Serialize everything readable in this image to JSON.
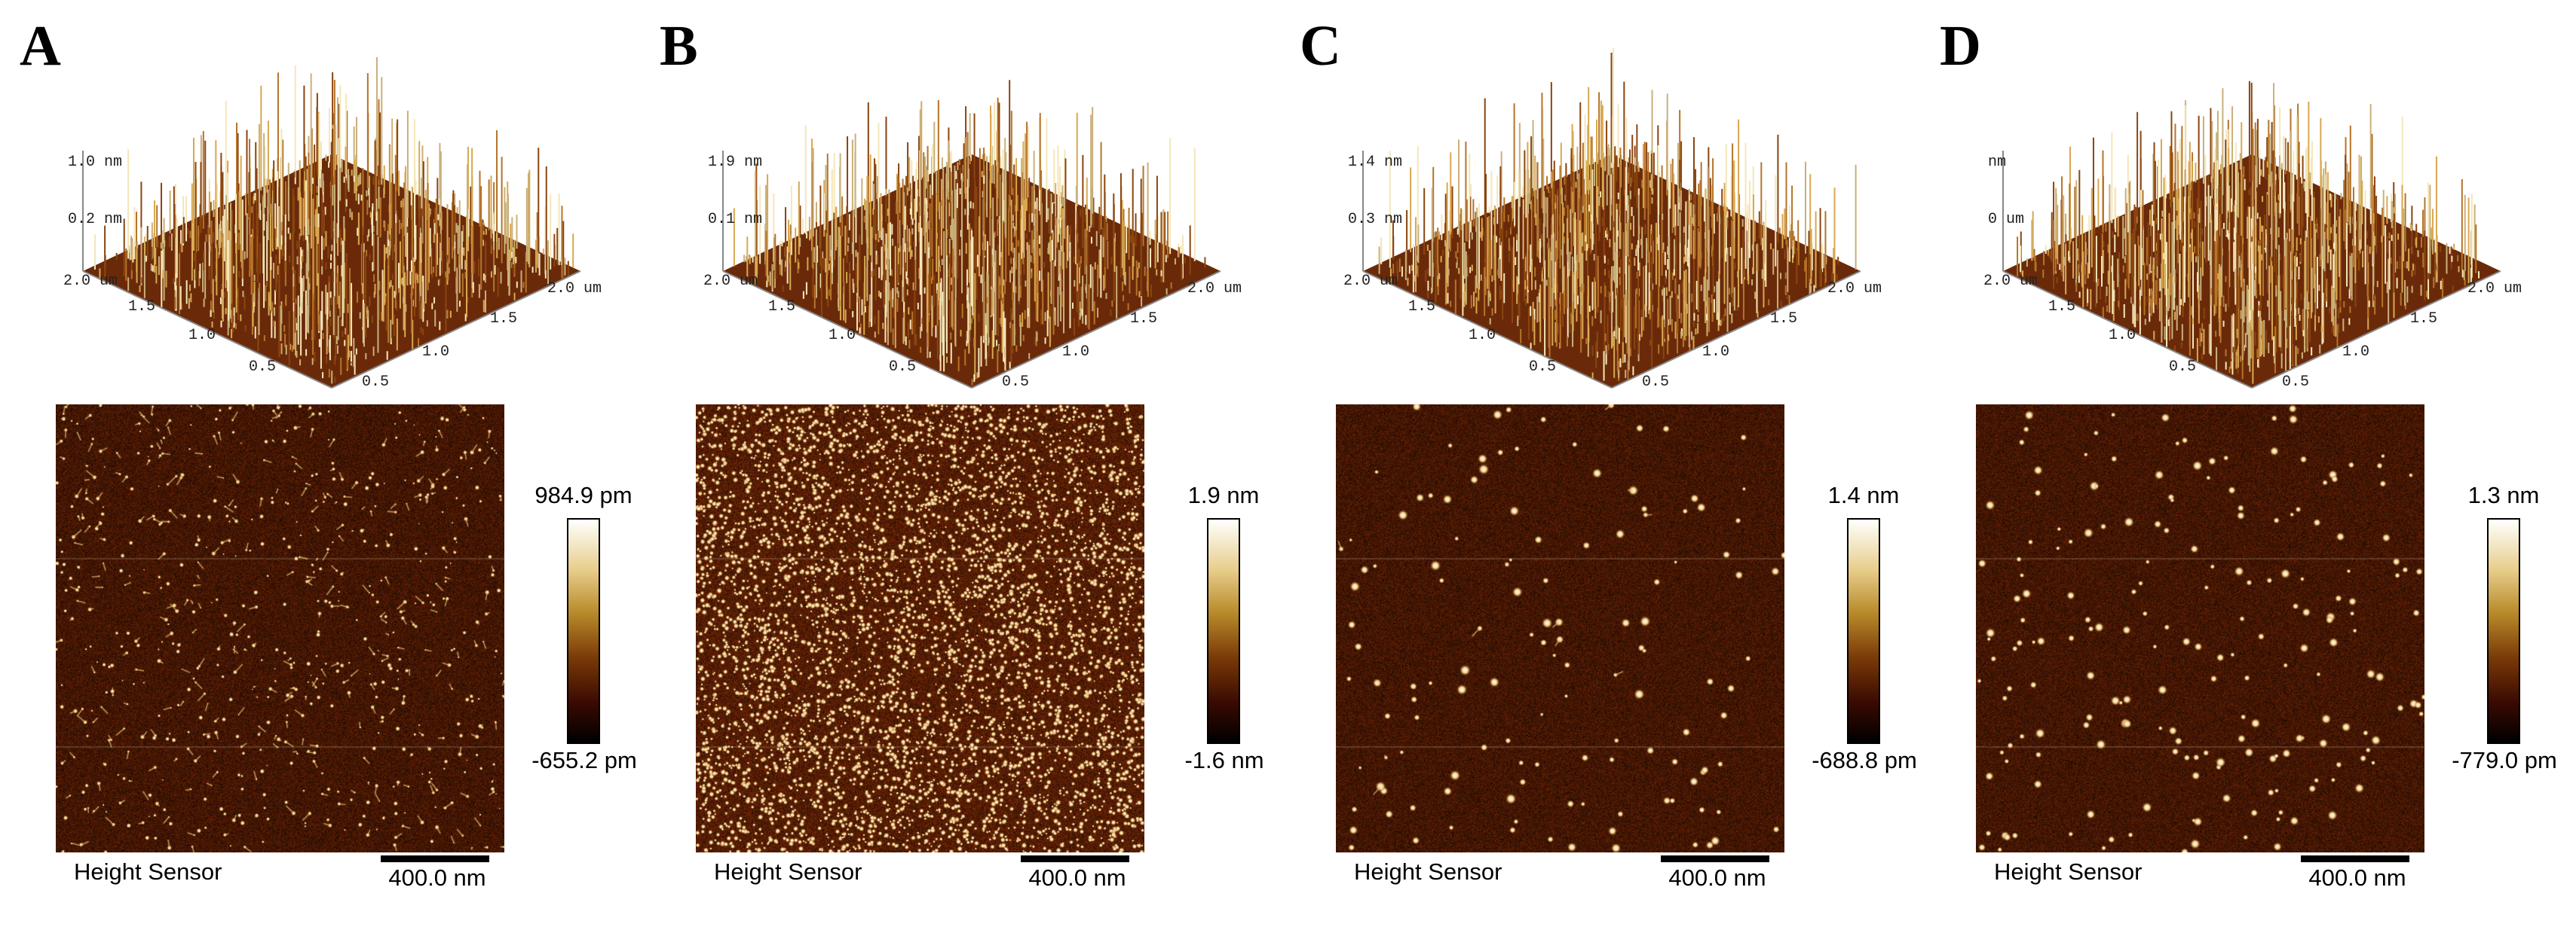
{
  "panels": [
    {
      "letter": "A",
      "z_top": "1.0 nm",
      "z_mid": "0.2 nm",
      "colorbar_max": "984.9 pm",
      "colorbar_min": "-655.2 pm",
      "sensor": "Height Sensor",
      "scale": "400.0 nm"
    },
    {
      "letter": "B",
      "z_top": "1.9 nm",
      "z_mid": "0.1 nm",
      "colorbar_max": "1.9 nm",
      "colorbar_min": "-1.6 nm",
      "sensor": "Height Sensor",
      "scale": "400.0 nm"
    },
    {
      "letter": "C",
      "z_top": "1.4 nm",
      "z_mid": "0.3 nm",
      "colorbar_max": "1.4 nm",
      "colorbar_min": "-688.8 pm",
      "sensor": "Height Sensor",
      "scale": "400.0 nm"
    },
    {
      "letter": "D",
      "z_top": "nm",
      "z_mid": "0 um",
      "colorbar_max": "1.3 nm",
      "colorbar_min": "-779.0 pm",
      "sensor": "Height Sensor",
      "scale": "400.0 nm"
    }
  ],
  "axis": {
    "y_ticks": [
      "2.0 um",
      "1.5",
      "1.0",
      "0.5"
    ],
    "x_ticks": [
      "0.5",
      "1.0",
      "1.5",
      "2.0 um"
    ]
  },
  "colors": {
    "afm_dark": "#5a1d05",
    "afm_mid": "#8a3a0c",
    "afm_bright": "#f2d58a",
    "afm_white": "#ffffff",
    "surface_base": "#6a2a0a"
  },
  "features": [
    {
      "mode": "sparse",
      "count": 700,
      "rmin": 1.2,
      "rmax": 3.5,
      "seed": 11,
      "linked": 0.5
    },
    {
      "mode": "dense",
      "count": 5200,
      "rmin": 1.5,
      "rmax": 4.0,
      "seed": 23,
      "linked": 0.0
    },
    {
      "mode": "spots",
      "count": 130,
      "rmin": 2.5,
      "rmax": 7.5,
      "seed": 37,
      "linked": 0.1
    },
    {
      "mode": "spots",
      "count": 200,
      "rmin": 3.0,
      "rmax": 7.0,
      "seed": 51,
      "linked": 0.0
    }
  ]
}
